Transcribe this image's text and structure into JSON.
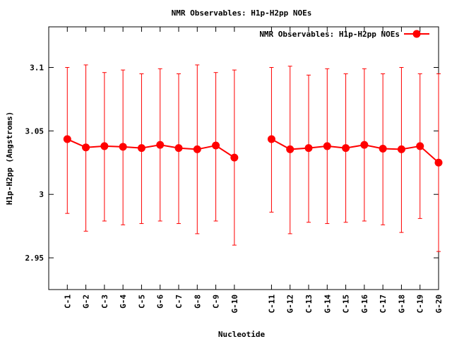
{
  "chart_data": {
    "type": "line",
    "title": "NMR Observables: H1p-H2pp NOEs",
    "xlabel": "Nucleotide",
    "ylabel": "H1p-H2pp (Angstroms)",
    "ylim": [
      2.925,
      3.132
    ],
    "yticks": [
      2.95,
      3,
      3.05,
      3.1
    ],
    "ytick_labels": [
      "2.95",
      "3",
      "3.05",
      "3.1"
    ],
    "grid": false,
    "legend_position": "top-right",
    "line_color": "#ff0000",
    "categories": [
      "C-1",
      "G-2",
      "C-3",
      "G-4",
      "C-5",
      "G-6",
      "C-7",
      "G-8",
      "C-9",
      "G-10",
      "C-11",
      "G-12",
      "C-13",
      "G-14",
      "C-15",
      "G-16",
      "C-17",
      "G-18",
      "C-19",
      "G-20"
    ],
    "x": [
      1,
      2,
      3,
      4,
      5,
      6,
      7,
      8,
      9,
      10,
      12,
      13,
      14,
      15,
      16,
      17,
      18,
      19,
      20,
      21
    ],
    "xlim": [
      0,
      21
    ],
    "series": [
      {
        "name": "NMR Observables: H1p-H2pp NOEs",
        "segments": [
          [
            0,
            9
          ],
          [
            10,
            19
          ]
        ],
        "values": [
          3.0435,
          3.037,
          3.038,
          3.0375,
          3.0365,
          3.039,
          3.0365,
          3.0355,
          3.0385,
          3.029,
          3.0435,
          3.0355,
          3.0365,
          3.038,
          3.0365,
          3.039,
          3.036,
          3.0355,
          3.038,
          3.025
        ],
        "err_low": [
          2.985,
          2.971,
          2.979,
          2.976,
          2.977,
          2.979,
          2.977,
          2.969,
          2.979,
          2.96,
          2.986,
          2.969,
          2.978,
          2.977,
          2.978,
          2.979,
          2.976,
          2.97,
          2.981,
          2.955
        ],
        "err_high": [
          3.1,
          3.102,
          3.096,
          3.098,
          3.095,
          3.099,
          3.095,
          3.102,
          3.096,
          3.098,
          3.1,
          3.101,
          3.094,
          3.099,
          3.095,
          3.099,
          3.095,
          3.1,
          3.095,
          3.095
        ]
      }
    ]
  }
}
